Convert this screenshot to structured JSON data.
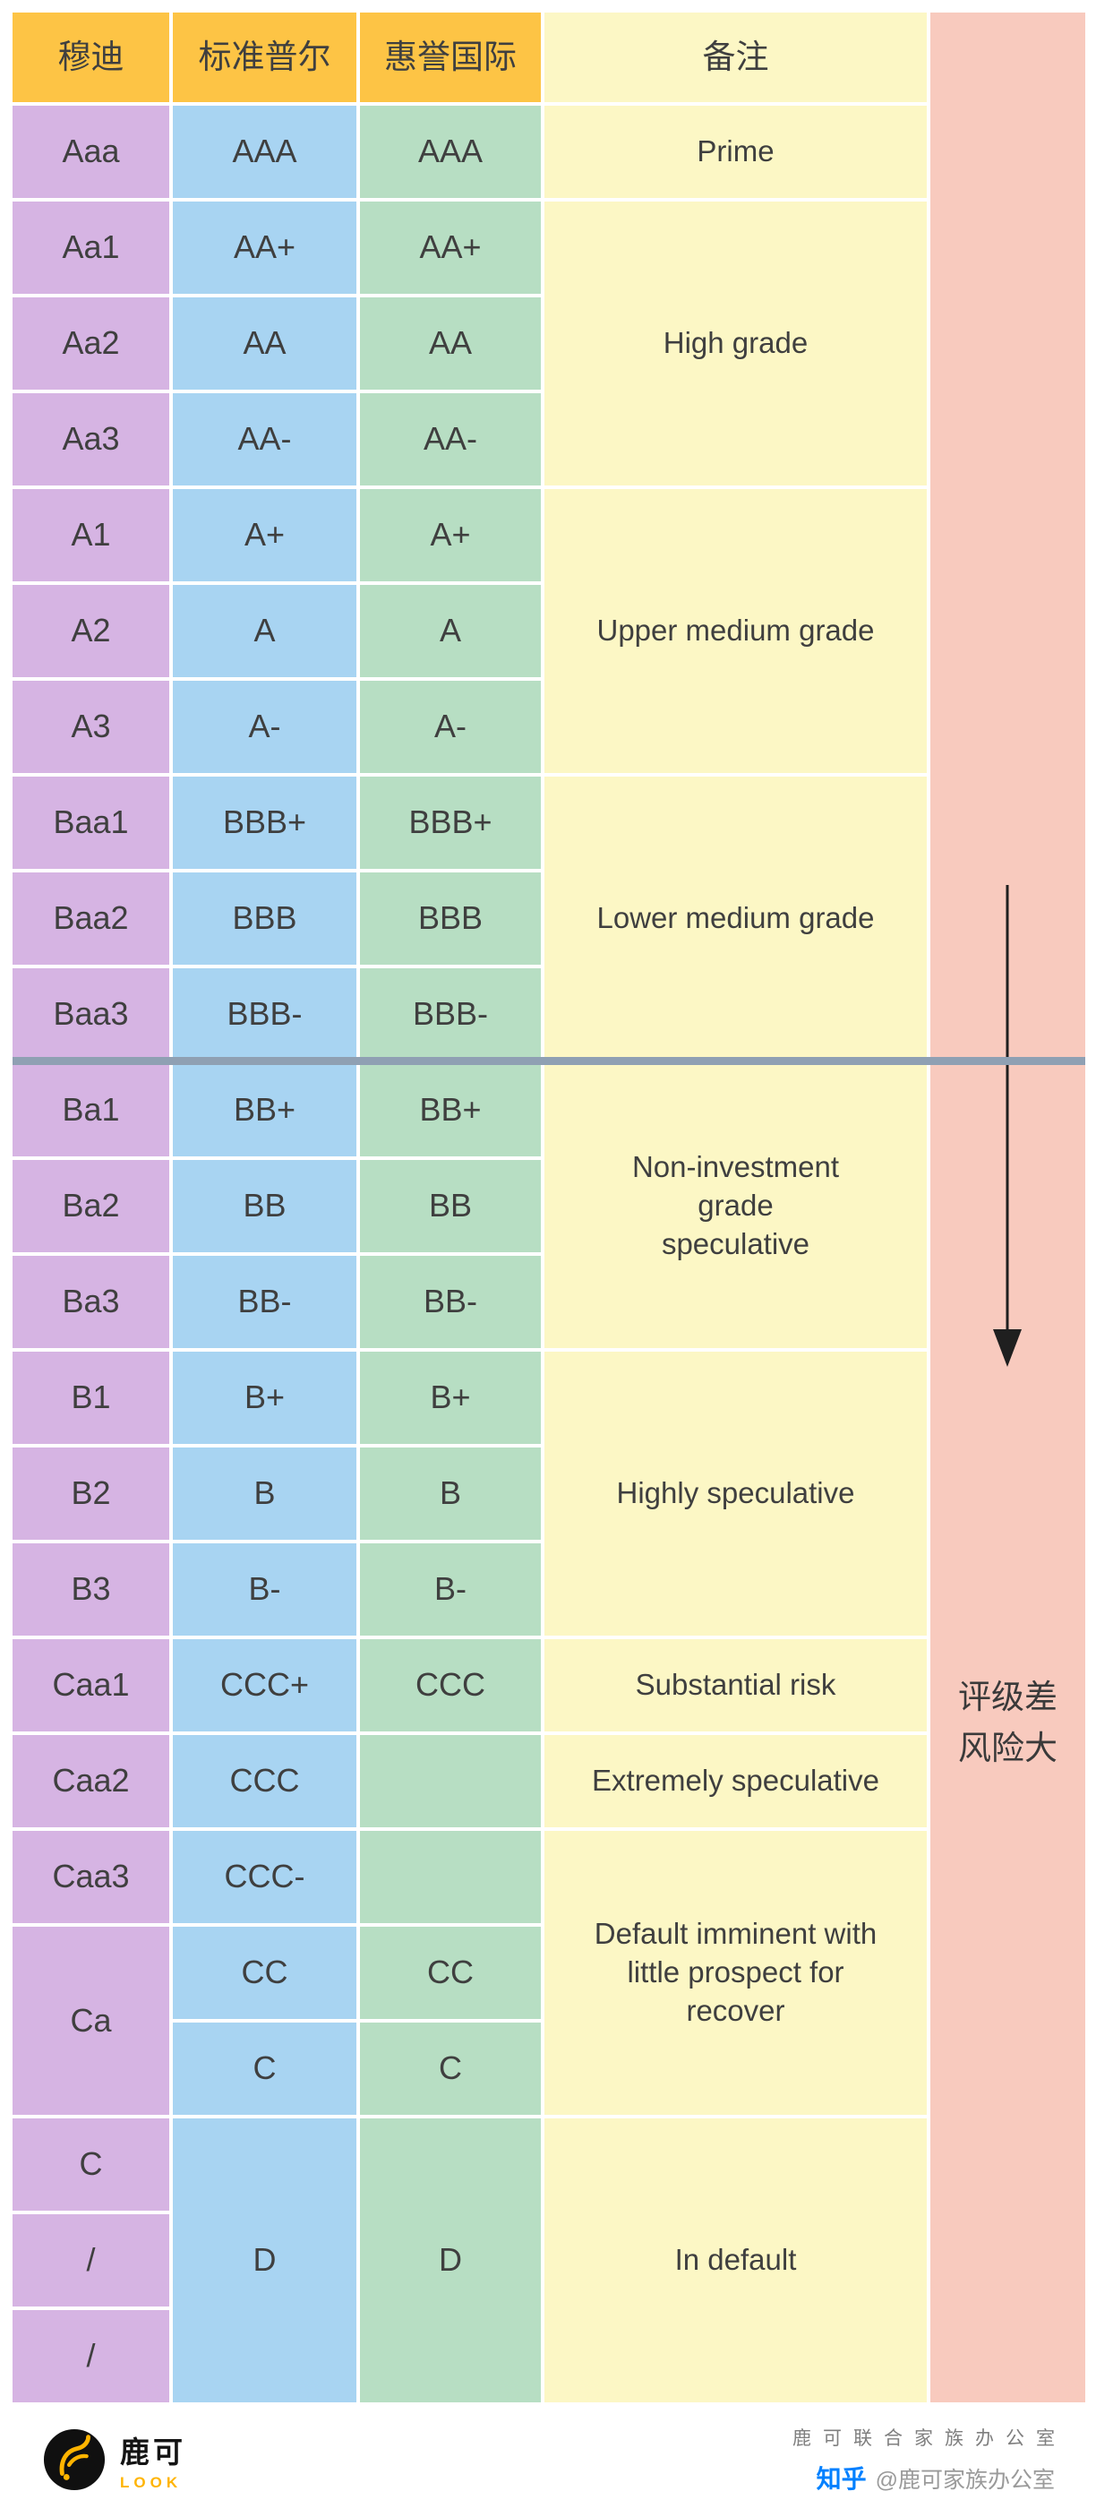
{
  "colors": {
    "gold": "#fdc445",
    "purple": "#d6b4e3",
    "blue": "#a8d4f2",
    "green": "#b7dec3",
    "yellow": "#fcf7c5",
    "pink": "#f8cabe",
    "divider": "#8fa0b3",
    "text": "#3f3f3f",
    "arrow": "#1f1f1f",
    "brand_yellow": "#ffb400",
    "zhihu_blue": "#0080ff"
  },
  "chart_data": {
    "type": "table",
    "columns": [
      "穆迪",
      "标准普尔",
      "惠誉国际",
      "备注"
    ],
    "cells": [
      {
        "col": 1,
        "row": 1,
        "span": 1,
        "color": "purple",
        "text": "Aaa"
      },
      {
        "col": 1,
        "row": 2,
        "span": 1,
        "color": "purple",
        "text": "Aa1"
      },
      {
        "col": 1,
        "row": 3,
        "span": 1,
        "color": "purple",
        "text": "Aa2"
      },
      {
        "col": 1,
        "row": 4,
        "span": 1,
        "color": "purple",
        "text": "Aa3"
      },
      {
        "col": 1,
        "row": 5,
        "span": 1,
        "color": "purple",
        "text": "A1"
      },
      {
        "col": 1,
        "row": 6,
        "span": 1,
        "color": "purple",
        "text": "A2"
      },
      {
        "col": 1,
        "row": 7,
        "span": 1,
        "color": "purple",
        "text": "A3"
      },
      {
        "col": 1,
        "row": 8,
        "span": 1,
        "color": "purple",
        "text": "Baa1"
      },
      {
        "col": 1,
        "row": 9,
        "span": 1,
        "color": "purple",
        "text": "Baa2"
      },
      {
        "col": 1,
        "row": 10,
        "span": 1,
        "color": "purple",
        "text": "Baa3"
      },
      {
        "col": 1,
        "row": 11,
        "span": 1,
        "color": "purple",
        "text": "Ba1"
      },
      {
        "col": 1,
        "row": 12,
        "span": 1,
        "color": "purple",
        "text": "Ba2"
      },
      {
        "col": 1,
        "row": 13,
        "span": 1,
        "color": "purple",
        "text": "Ba3"
      },
      {
        "col": 1,
        "row": 14,
        "span": 1,
        "color": "purple",
        "text": "B1"
      },
      {
        "col": 1,
        "row": 15,
        "span": 1,
        "color": "purple",
        "text": "B2"
      },
      {
        "col": 1,
        "row": 16,
        "span": 1,
        "color": "purple",
        "text": "B3"
      },
      {
        "col": 1,
        "row": 17,
        "span": 1,
        "color": "purple",
        "text": "Caa1"
      },
      {
        "col": 1,
        "row": 18,
        "span": 1,
        "color": "purple",
        "text": "Caa2"
      },
      {
        "col": 1,
        "row": 19,
        "span": 1,
        "color": "purple",
        "text": "Caa3"
      },
      {
        "col": 1,
        "row": 20,
        "span": 2,
        "color": "purple",
        "text": "Ca"
      },
      {
        "col": 1,
        "row": 22,
        "span": 1,
        "color": "purple",
        "text": "C"
      },
      {
        "col": 1,
        "row": 23,
        "span": 1,
        "color": "purple",
        "text": "/"
      },
      {
        "col": 1,
        "row": 24,
        "span": 1,
        "color": "purple",
        "text": "/"
      },
      {
        "col": 2,
        "row": 1,
        "span": 1,
        "color": "blue",
        "text": "AAA"
      },
      {
        "col": 2,
        "row": 2,
        "span": 1,
        "color": "blue",
        "text": "AA+"
      },
      {
        "col": 2,
        "row": 3,
        "span": 1,
        "color": "blue",
        "text": "AA"
      },
      {
        "col": 2,
        "row": 4,
        "span": 1,
        "color": "blue",
        "text": "AA-"
      },
      {
        "col": 2,
        "row": 5,
        "span": 1,
        "color": "blue",
        "text": "A+"
      },
      {
        "col": 2,
        "row": 6,
        "span": 1,
        "color": "blue",
        "text": "A"
      },
      {
        "col": 2,
        "row": 7,
        "span": 1,
        "color": "blue",
        "text": "A-"
      },
      {
        "col": 2,
        "row": 8,
        "span": 1,
        "color": "blue",
        "text": "BBB+"
      },
      {
        "col": 2,
        "row": 9,
        "span": 1,
        "color": "blue",
        "text": "BBB"
      },
      {
        "col": 2,
        "row": 10,
        "span": 1,
        "color": "blue",
        "text": "BBB-"
      },
      {
        "col": 2,
        "row": 11,
        "span": 1,
        "color": "blue",
        "text": "BB+"
      },
      {
        "col": 2,
        "row": 12,
        "span": 1,
        "color": "blue",
        "text": "BB"
      },
      {
        "col": 2,
        "row": 13,
        "span": 1,
        "color": "blue",
        "text": "BB-"
      },
      {
        "col": 2,
        "row": 14,
        "span": 1,
        "color": "blue",
        "text": "B+"
      },
      {
        "col": 2,
        "row": 15,
        "span": 1,
        "color": "blue",
        "text": "B"
      },
      {
        "col": 2,
        "row": 16,
        "span": 1,
        "color": "blue",
        "text": "B-"
      },
      {
        "col": 2,
        "row": 17,
        "span": 1,
        "color": "blue",
        "text": "CCC+"
      },
      {
        "col": 2,
        "row": 18,
        "span": 1,
        "color": "blue",
        "text": "CCC"
      },
      {
        "col": 2,
        "row": 19,
        "span": 1,
        "color": "blue",
        "text": "CCC-"
      },
      {
        "col": 2,
        "row": 20,
        "span": 1,
        "color": "blue",
        "text": "CC"
      },
      {
        "col": 2,
        "row": 21,
        "span": 1,
        "color": "blue",
        "text": "C"
      },
      {
        "col": 2,
        "row": 22,
        "span": 3,
        "color": "blue",
        "text": "D"
      },
      {
        "col": 3,
        "row": 1,
        "span": 1,
        "color": "green",
        "text": "AAA"
      },
      {
        "col": 3,
        "row": 2,
        "span": 1,
        "color": "green",
        "text": "AA+"
      },
      {
        "col": 3,
        "row": 3,
        "span": 1,
        "color": "green",
        "text": "AA"
      },
      {
        "col": 3,
        "row": 4,
        "span": 1,
        "color": "green",
        "text": "AA-"
      },
      {
        "col": 3,
        "row": 5,
        "span": 1,
        "color": "green",
        "text": "A+"
      },
      {
        "col": 3,
        "row": 6,
        "span": 1,
        "color": "green",
        "text": "A"
      },
      {
        "col": 3,
        "row": 7,
        "span": 1,
        "color": "green",
        "text": "A-"
      },
      {
        "col": 3,
        "row": 8,
        "span": 1,
        "color": "green",
        "text": "BBB+"
      },
      {
        "col": 3,
        "row": 9,
        "span": 1,
        "color": "green",
        "text": "BBB"
      },
      {
        "col": 3,
        "row": 10,
        "span": 1,
        "color": "green",
        "text": "BBB-"
      },
      {
        "col": 3,
        "row": 11,
        "span": 1,
        "color": "green",
        "text": "BB+"
      },
      {
        "col": 3,
        "row": 12,
        "span": 1,
        "color": "green",
        "text": "BB"
      },
      {
        "col": 3,
        "row": 13,
        "span": 1,
        "color": "green",
        "text": "BB-"
      },
      {
        "col": 3,
        "row": 14,
        "span": 1,
        "color": "green",
        "text": "B+"
      },
      {
        "col": 3,
        "row": 15,
        "span": 1,
        "color": "green",
        "text": "B"
      },
      {
        "col": 3,
        "row": 16,
        "span": 1,
        "color": "green",
        "text": "B-"
      },
      {
        "col": 3,
        "row": 17,
        "span": 1,
        "color": "green",
        "text": "CCC"
      },
      {
        "col": 3,
        "row": 18,
        "span": 1,
        "color": "green",
        "text": ""
      },
      {
        "col": 3,
        "row": 19,
        "span": 1,
        "color": "green",
        "text": ""
      },
      {
        "col": 3,
        "row": 20,
        "span": 1,
        "color": "green",
        "text": "CC"
      },
      {
        "col": 3,
        "row": 21,
        "span": 1,
        "color": "green",
        "text": "C"
      },
      {
        "col": 3,
        "row": 22,
        "span": 3,
        "color": "green",
        "text": "D"
      },
      {
        "col": 4,
        "row": 1,
        "span": 1,
        "color": "yellow",
        "text": "Prime"
      },
      {
        "col": 4,
        "row": 2,
        "span": 3,
        "color": "yellow",
        "text": "High grade"
      },
      {
        "col": 4,
        "row": 5,
        "span": 3,
        "color": "yellow",
        "text": "Upper medium grade"
      },
      {
        "col": 4,
        "row": 8,
        "span": 3,
        "color": "yellow",
        "text": "Lower medium grade"
      },
      {
        "col": 4,
        "row": 11,
        "span": 3,
        "color": "yellow",
        "text": "Non-investment\ngrade\nspeculative"
      },
      {
        "col": 4,
        "row": 14,
        "span": 3,
        "color": "yellow",
        "text": "Highly speculative"
      },
      {
        "col": 4,
        "row": 17,
        "span": 1,
        "color": "yellow",
        "text": "Substantial risk"
      },
      {
        "col": 4,
        "row": 18,
        "span": 1,
        "color": "yellow",
        "text": "Extremely speculative"
      },
      {
        "col": 4,
        "row": 19,
        "span": 3,
        "color": "yellow",
        "text": "Default imminent with\nlittle prospect for\nrecover"
      },
      {
        "col": 4,
        "row": 22,
        "span": 3,
        "color": "yellow",
        "text": "In default"
      }
    ]
  },
  "side_note": {
    "line1": "评级差",
    "line2": "风险大"
  },
  "footer": {
    "brand_cn": "鹿可",
    "brand_en": "LOOK",
    "office": "鹿可联合家族办公室",
    "zhihu": "知乎",
    "handle": "@鹿可家族办公室"
  }
}
